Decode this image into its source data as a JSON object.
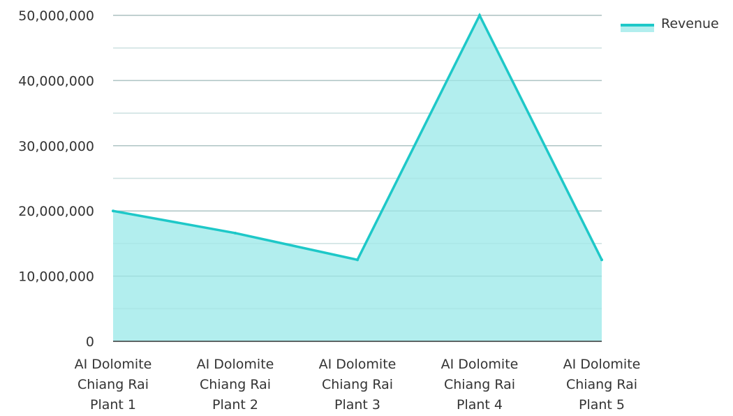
{
  "chart_data": {
    "type": "area",
    "categories": [
      [
        "AI Dolomite",
        "Chiang Rai",
        "Plant 1"
      ],
      [
        "AI Dolomite",
        "Chiang Rai",
        "Plant 2"
      ],
      [
        "AI Dolomite",
        "Chiang Rai",
        "Plant 3"
      ],
      [
        "AI Dolomite",
        "Chiang Rai",
        "Plant 4"
      ],
      [
        "AI Dolomite",
        "Chiang Rai",
        "Plant 5"
      ]
    ],
    "series": [
      {
        "name": "Revenue",
        "values": [
          20000000,
          16600000,
          12500000,
          50000000,
          12500000
        ]
      }
    ],
    "ylim": [
      0,
      50000000
    ],
    "y_ticks": [
      "0",
      "10,000,000",
      "20,000,000",
      "30,000,000",
      "40,000,000",
      "50,000,000"
    ],
    "y_tick_values": [
      0,
      10000000,
      20000000,
      30000000,
      40000000,
      50000000
    ],
    "grid": true,
    "legend_position": "top-right",
    "colors": {
      "line": "#1ec8c8",
      "fill": "#b2eeee",
      "grid_major": "#c8c8c8",
      "grid_minor": "#e6e6e6",
      "axis": "#333333"
    }
  }
}
